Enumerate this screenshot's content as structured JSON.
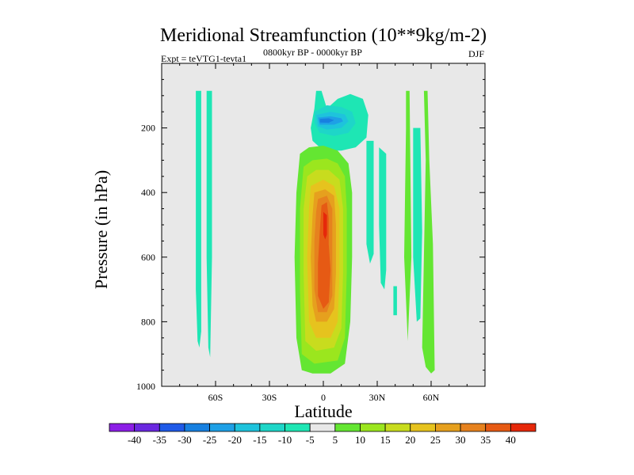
{
  "chart_data": {
    "type": "contour",
    "title": "Meridional Streamfunction (10**9kg/m-2)",
    "left_label": "Expt = teVTG1-tevta1",
    "center_label": "0800kyr BP - 0000kyr BP",
    "right_label": "DJF",
    "xlabel": "Latitude",
    "ylabel": "Pressure (in hPa)",
    "xlim": [
      -90,
      90
    ],
    "ylim": [
      0,
      1000
    ],
    "x_ticks": [
      {
        "value": -60,
        "label": "60S"
      },
      {
        "value": -30,
        "label": "30S"
      },
      {
        "value": 0,
        "label": "0"
      },
      {
        "value": 30,
        "label": "30N"
      },
      {
        "value": 60,
        "label": "60N"
      }
    ],
    "y_ticks": [
      {
        "value": 200,
        "label": "200"
      },
      {
        "value": 400,
        "label": "400"
      },
      {
        "value": 600,
        "label": "600"
      },
      {
        "value": 800,
        "label": "800"
      },
      {
        "value": 1000,
        "label": "1000"
      }
    ],
    "colorbar": {
      "levels": [
        -40,
        -35,
        -30,
        -25,
        -20,
        -15,
        -10,
        -5,
        5,
        10,
        15,
        20,
        25,
        30,
        35,
        40
      ],
      "labels": [
        "-40",
        "-35",
        "-30",
        "-25",
        "-20",
        "-15",
        "-10",
        "-5",
        "5",
        "10",
        "15",
        "20",
        "25",
        "30",
        "35",
        "40"
      ],
      "colors": [
        "#8c1ee6",
        "#6a28e0",
        "#1f5ae8",
        "#1780e0",
        "#1ea0e6",
        "#1ec3dc",
        "#1ed6c8",
        "#1ee6b4",
        "#e8e8e8",
        "#64e632",
        "#9be61e",
        "#c8dc1e",
        "#e6c31e",
        "#e6a01e",
        "#e6821e",
        "#e65a14",
        "#e6280a"
      ]
    },
    "contours": [
      {
        "color": "#1ee6b4",
        "points": [
          [
            -71,
            85
          ],
          [
            -68,
            85
          ],
          [
            -68,
            830
          ],
          [
            -69,
            880
          ],
          [
            -70,
            860
          ],
          [
            -71,
            700
          ]
        ]
      },
      {
        "color": "#1ee6b4",
        "points": [
          [
            -65,
            85
          ],
          [
            -62,
            85
          ],
          [
            -62,
            600
          ],
          [
            -63,
            910
          ],
          [
            -64,
            880
          ],
          [
            -65,
            600
          ]
        ]
      },
      {
        "color": "#1ee6b4",
        "points": [
          [
            -4,
            85
          ],
          [
            -1,
            85
          ],
          [
            2,
            140
          ],
          [
            8,
            110
          ],
          [
            15,
            95
          ],
          [
            22,
            110
          ],
          [
            25,
            160
          ],
          [
            24,
            230
          ],
          [
            18,
            260
          ],
          [
            10,
            270
          ],
          [
            4,
            270
          ],
          [
            -1,
            265
          ],
          [
            -6,
            240
          ],
          [
            -7,
            200
          ],
          [
            -5,
            140
          ]
        ]
      },
      {
        "color": "#1ed6c8",
        "points": [
          [
            -5,
            150
          ],
          [
            2,
            130
          ],
          [
            10,
            135
          ],
          [
            16,
            150
          ],
          [
            18,
            185
          ],
          [
            14,
            215
          ],
          [
            6,
            225
          ],
          [
            -2,
            215
          ],
          [
            -5,
            185
          ]
        ]
      },
      {
        "color": "#1ec3dc",
        "points": [
          [
            -4,
            160
          ],
          [
            4,
            150
          ],
          [
            12,
            158
          ],
          [
            14,
            180
          ],
          [
            10,
            200
          ],
          [
            2,
            205
          ],
          [
            -3,
            195
          ]
        ]
      },
      {
        "color": "#1ea0e6",
        "points": [
          [
            -3,
            168
          ],
          [
            4,
            164
          ],
          [
            10,
            170
          ],
          [
            11,
            180
          ],
          [
            6,
            190
          ],
          [
            -2,
            190
          ]
        ]
      },
      {
        "color": "#1780e0",
        "points": [
          [
            -2,
            172
          ],
          [
            3,
            170
          ],
          [
            6,
            176
          ],
          [
            3,
            184
          ],
          [
            -2,
            183
          ]
        ]
      },
      {
        "color": "#1ee6b4",
        "points": [
          [
            24,
            240
          ],
          [
            28,
            240
          ],
          [
            28,
            590
          ],
          [
            26,
            620
          ],
          [
            24,
            560
          ]
        ]
      },
      {
        "color": "#1ee6b4",
        "points": [
          [
            31,
            260
          ],
          [
            35,
            280
          ],
          [
            35,
            640
          ],
          [
            34,
            700
          ],
          [
            32,
            680
          ],
          [
            31,
            500
          ]
        ]
      },
      {
        "color": "#1ee6b4",
        "points": [
          [
            39,
            690
          ],
          [
            41,
            690
          ],
          [
            41,
            780
          ],
          [
            39,
            780
          ]
        ]
      },
      {
        "color": "#1ee6b4",
        "points": [
          [
            50,
            200
          ],
          [
            54,
            200
          ],
          [
            55,
            520
          ],
          [
            54,
            790
          ],
          [
            52,
            800
          ],
          [
            50,
            600
          ]
        ]
      },
      {
        "color": "#64e632",
        "points": [
          [
            46,
            85
          ],
          [
            48,
            85
          ],
          [
            49,
            600
          ],
          [
            47,
            860
          ],
          [
            45,
            600
          ],
          [
            46,
            200
          ]
        ]
      },
      {
        "color": "#64e632",
        "points": [
          [
            56,
            85
          ],
          [
            58,
            85
          ],
          [
            59,
            300
          ],
          [
            61,
            560
          ],
          [
            62,
            950
          ],
          [
            60,
            960
          ],
          [
            57,
            940
          ],
          [
            55,
            880
          ],
          [
            56,
            600
          ],
          [
            57,
            300
          ]
        ]
      },
      {
        "color": "#64e632",
        "points": [
          [
            -13,
            280
          ],
          [
            -8,
            260
          ],
          [
            0,
            255
          ],
          [
            8,
            270
          ],
          [
            14,
            310
          ],
          [
            16,
            400
          ],
          [
            16,
            600
          ],
          [
            15,
            800
          ],
          [
            12,
            930
          ],
          [
            4,
            960
          ],
          [
            -6,
            960
          ],
          [
            -12,
            950
          ],
          [
            -15,
            850
          ],
          [
            -16,
            600
          ],
          [
            -15,
            400
          ]
        ]
      },
      {
        "color": "#9be61e",
        "points": [
          [
            -11,
            320
          ],
          [
            -6,
            300
          ],
          [
            2,
            295
          ],
          [
            8,
            310
          ],
          [
            12,
            350
          ],
          [
            13,
            450
          ],
          [
            13,
            650
          ],
          [
            12,
            850
          ],
          [
            8,
            920
          ],
          [
            -5,
            930
          ],
          [
            -12,
            900
          ],
          [
            -13,
            700
          ],
          [
            -13,
            450
          ]
        ]
      },
      {
        "color": "#c8dc1e",
        "points": [
          [
            -9,
            350
          ],
          [
            -4,
            330
          ],
          [
            3,
            330
          ],
          [
            9,
            360
          ],
          [
            11,
            450
          ],
          [
            11,
            650
          ],
          [
            10,
            820
          ],
          [
            6,
            880
          ],
          [
            -4,
            890
          ],
          [
            -10,
            860
          ],
          [
            -11,
            650
          ],
          [
            -11,
            450
          ]
        ]
      },
      {
        "color": "#e6c31e",
        "points": [
          [
            -7,
            380
          ],
          [
            0,
            360
          ],
          [
            6,
            380
          ],
          [
            9,
            450
          ],
          [
            9,
            650
          ],
          [
            8,
            800
          ],
          [
            4,
            850
          ],
          [
            -4,
            850
          ],
          [
            -8,
            800
          ],
          [
            -9,
            600
          ],
          [
            -8,
            450
          ]
        ]
      },
      {
        "color": "#e6a01e",
        "points": [
          [
            -5,
            400
          ],
          [
            1,
            390
          ],
          [
            6,
            410
          ],
          [
            7,
            500
          ],
          [
            7,
            650
          ],
          [
            6,
            760
          ],
          [
            2,
            800
          ],
          [
            -4,
            800
          ],
          [
            -6,
            750
          ],
          [
            -7,
            600
          ],
          [
            -6,
            470
          ]
        ]
      },
      {
        "color": "#e6821e",
        "points": [
          [
            -3,
            420
          ],
          [
            2,
            410
          ],
          [
            5,
            450
          ],
          [
            5,
            600
          ],
          [
            5,
            720
          ],
          [
            2,
            770
          ],
          [
            -3,
            770
          ],
          [
            -5,
            700
          ],
          [
            -5,
            550
          ],
          [
            -4,
            460
          ]
        ]
      },
      {
        "color": "#e65a14",
        "points": [
          [
            -1,
            440
          ],
          [
            2,
            430
          ],
          [
            3,
            480
          ],
          [
            3,
            560
          ],
          [
            4,
            640
          ],
          [
            3,
            740
          ],
          [
            0,
            760
          ],
          [
            -3,
            720
          ],
          [
            -3,
            620
          ],
          [
            -2,
            520
          ]
        ]
      },
      {
        "color": "#e6280a",
        "points": [
          [
            0,
            460
          ],
          [
            2,
            470
          ],
          [
            2,
            530
          ],
          [
            1,
            545
          ],
          [
            0,
            530
          ]
        ]
      }
    ]
  }
}
